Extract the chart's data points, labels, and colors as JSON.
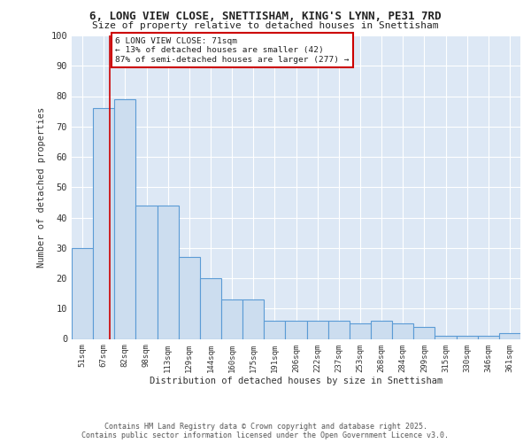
{
  "title": "6, LONG VIEW CLOSE, SNETTISHAM, KING'S LYNN, PE31 7RD",
  "subtitle": "Size of property relative to detached houses in Snettisham",
  "xlabel": "Distribution of detached houses by size in Snettisham",
  "ylabel": "Number of detached properties",
  "bar_labels": [
    "51sqm",
    "67sqm",
    "82sqm",
    "98sqm",
    "113sqm",
    "129sqm",
    "144sqm",
    "160sqm",
    "175sqm",
    "191sqm",
    "206sqm",
    "222sqm",
    "237sqm",
    "253sqm",
    "268sqm",
    "284sqm",
    "299sqm",
    "315sqm",
    "330sqm",
    "346sqm",
    "361sqm"
  ],
  "bar_heights": [
    30,
    76,
    79,
    44,
    44,
    27,
    20,
    13,
    13,
    6,
    6,
    6,
    6,
    5,
    6,
    5,
    4,
    1,
    1,
    1,
    2
  ],
  "bar_color": "#ccddef",
  "bar_edge_color": "#5b9bd5",
  "bg_color": "#dde8f5",
  "grid_color": "#ffffff",
  "red_line_x": 1.27,
  "annotation_text": "6 LONG VIEW CLOSE: 71sqm\n← 13% of detached houses are smaller (42)\n87% of semi-detached houses are larger (277) →",
  "footer": "Contains HM Land Registry data © Crown copyright and database right 2025.\nContains public sector information licensed under the Open Government Licence v3.0.",
  "ylim": [
    0,
    100
  ],
  "yticks": [
    0,
    10,
    20,
    30,
    40,
    50,
    60,
    70,
    80,
    90,
    100
  ]
}
